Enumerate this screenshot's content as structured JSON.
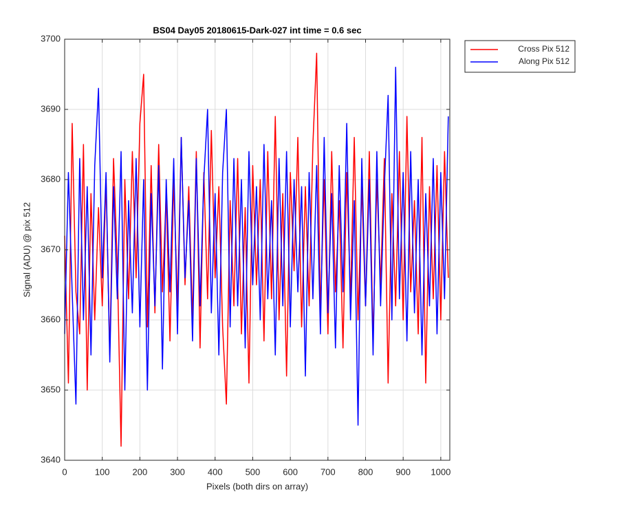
{
  "chart_data": {
    "type": "line",
    "title": "BS04 Day05 20180615-Dark-027 int time = 0.6 sec",
    "x_label": "Pixels (both dirs on array)",
    "y_label": "Signal (ADU) @ pix 512",
    "x": [
      0,
      10,
      20,
      30,
      40,
      50,
      60,
      70,
      80,
      90,
      100,
      110,
      120,
      130,
      140,
      150,
      160,
      170,
      180,
      190,
      200,
      210,
      220,
      230,
      240,
      250,
      260,
      270,
      280,
      290,
      300,
      310,
      320,
      330,
      340,
      350,
      360,
      370,
      380,
      390,
      400,
      410,
      420,
      430,
      440,
      450,
      460,
      470,
      480,
      490,
      500,
      510,
      520,
      530,
      540,
      550,
      560,
      570,
      580,
      590,
      600,
      610,
      620,
      630,
      640,
      650,
      660,
      670,
      680,
      690,
      700,
      710,
      720,
      730,
      740,
      750,
      760,
      770,
      780,
      790,
      800,
      810,
      820,
      830,
      840,
      850,
      860,
      870,
      880,
      890,
      900,
      910,
      920,
      930,
      940,
      950,
      960,
      970,
      980,
      990,
      1000,
      1010,
      1020
    ],
    "series": [
      {
        "name": "Cross Pix 512",
        "color": "#ff0000",
        "values": [
          3672,
          3651,
          3688,
          3664,
          3658,
          3685,
          3650,
          3678,
          3660,
          3676,
          3662,
          3680,
          3655,
          3683,
          3668,
          3642,
          3680,
          3663,
          3684,
          3666,
          3688,
          3695,
          3659,
          3682,
          3661,
          3685,
          3664,
          3678,
          3657,
          3680,
          3662,
          3686,
          3665,
          3679,
          3660,
          3684,
          3656,
          3681,
          3663,
          3687,
          3666,
          3679,
          3659,
          3648,
          3677,
          3662,
          3683,
          3658,
          3676,
          3651,
          3682,
          3665,
          3680,
          3657,
          3684,
          3663,
          3689,
          3660,
          3678,
          3652,
          3681,
          3667,
          3686,
          3659,
          3679,
          3662,
          3685,
          3698,
          3661,
          3680,
          3658,
          3684,
          3664,
          3677,
          3656,
          3681,
          3663,
          3686,
          3660,
          3679,
          3662,
          3684,
          3657,
          3680,
          3665,
          3683,
          3651,
          3678,
          3662,
          3684,
          3660,
          3689,
          3664,
          3677,
          3658,
          3686,
          3651,
          3679,
          3663,
          3682,
          3660,
          3684,
          3666
        ]
      },
      {
        "name": "Along Pix 512",
        "color": "#0000ff",
        "values": [
          3658,
          3681,
          3664,
          3648,
          3683,
          3660,
          3679,
          3655,
          3682,
          3693,
          3666,
          3681,
          3654,
          3679,
          3663,
          3684,
          3650,
          3677,
          3661,
          3683,
          3659,
          3680,
          3650,
          3678,
          3662,
          3682,
          3653,
          3680,
          3664,
          3683,
          3658,
          3686,
          3666,
          3677,
          3657,
          3683,
          3662,
          3680,
          3690,
          3661,
          3678,
          3655,
          3681,
          3690,
          3659,
          3683,
          3662,
          3680,
          3656,
          3684,
          3665,
          3679,
          3660,
          3685,
          3663,
          3677,
          3655,
          3683,
          3662,
          3684,
          3659,
          3680,
          3664,
          3679,
          3652,
          3681,
          3663,
          3682,
          3658,
          3686,
          3661,
          3678,
          3656,
          3682,
          3664,
          3688,
          3660,
          3677,
          3645,
          3683,
          3662,
          3680,
          3655,
          3684,
          3662,
          3679,
          3692,
          3660,
          3696,
          3663,
          3681,
          3657,
          3684,
          3661,
          3680,
          3655,
          3678,
          3662,
          3683,
          3658,
          3681,
          3663,
          3689
        ]
      }
    ],
    "xlim": [
      0,
      1024
    ],
    "ylim": [
      3640,
      3700
    ],
    "xticks": [
      0,
      100,
      200,
      300,
      400,
      500,
      600,
      700,
      800,
      900,
      1000
    ],
    "yticks": [
      3640,
      3650,
      3660,
      3670,
      3680,
      3690,
      3700
    ],
    "grid": true,
    "legend": "northeastoutside"
  }
}
